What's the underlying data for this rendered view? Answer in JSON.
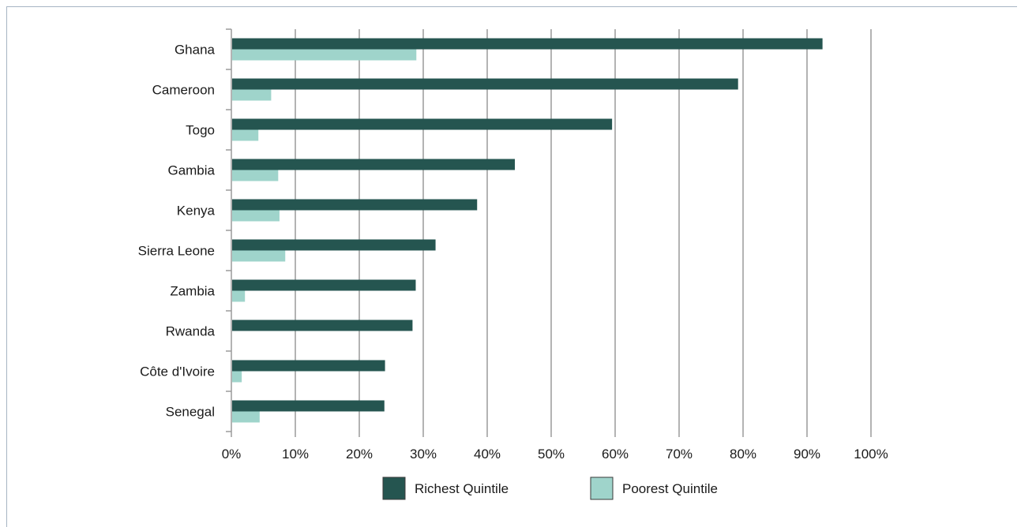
{
  "chart_data": {
    "type": "bar",
    "orientation": "horizontal",
    "categories": [
      "Ghana",
      "Cameroon",
      "Togo",
      "Gambia",
      "Kenya",
      "Sierra Leone",
      "Zambia",
      "Rwanda",
      "Côte d'Ivoire",
      "Senegal"
    ],
    "series": [
      {
        "name": "Richest Quintile",
        "color": "#255550",
        "values": [
          92.3,
          79.1,
          59.4,
          44.2,
          38.3,
          31.8,
          28.7,
          28.2,
          23.9,
          23.8
        ]
      },
      {
        "name": "Poorest Quintile",
        "color": "#9fd4cb",
        "values": [
          28.8,
          6.1,
          4.1,
          7.2,
          7.4,
          8.3,
          2.0,
          0.0,
          1.5,
          4.3
        ]
      }
    ],
    "xlim": [
      0,
      100
    ],
    "xticks": [
      "0%",
      "10%",
      "20%",
      "30%",
      "40%",
      "50%",
      "60%",
      "70%",
      "80%",
      "90%",
      "100%"
    ],
    "grid": "vertical",
    "legend": "bottom-center"
  }
}
